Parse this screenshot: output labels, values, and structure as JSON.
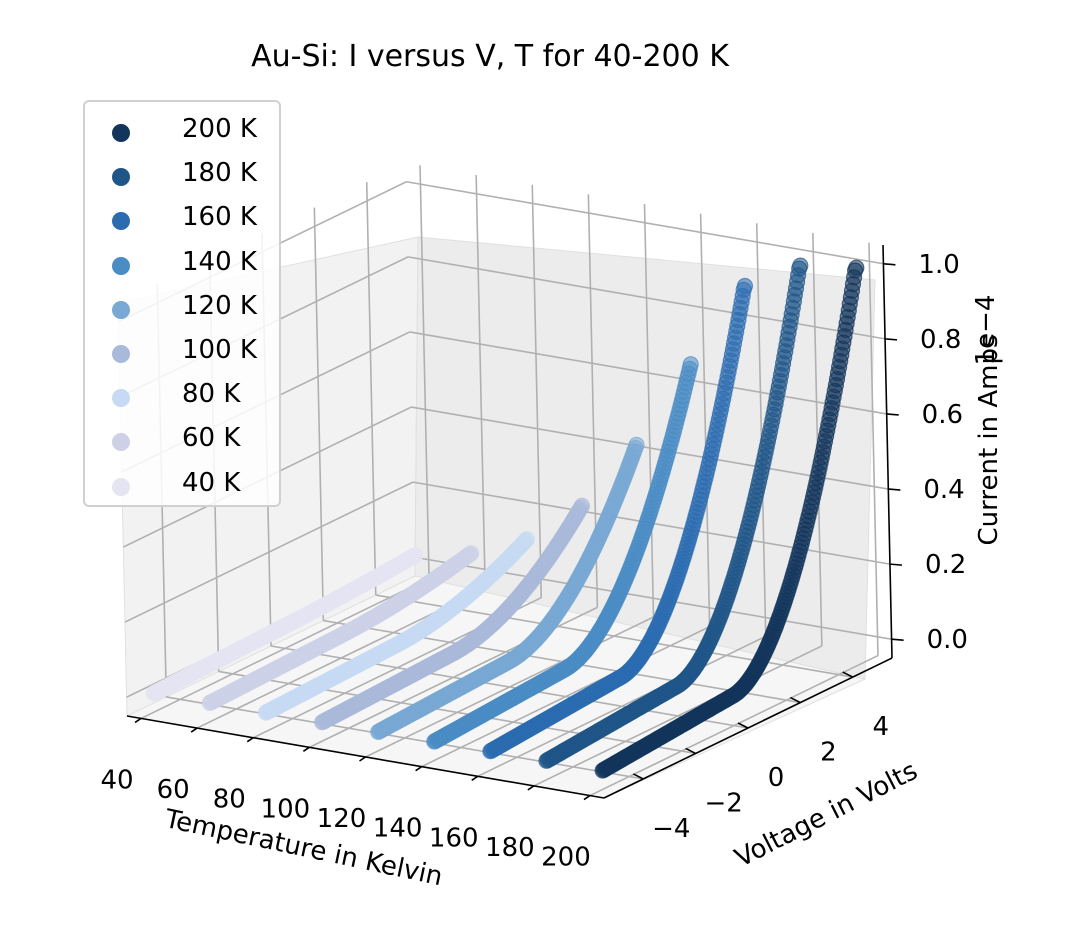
{
  "chart_data": {
    "type": "scatter",
    "projection": "3d",
    "title": "Au-Si: I versus V, T for 40-200 K",
    "xlabel": "Temperature in Kelvin",
    "ylabel": "Voltage in Volts",
    "zlabel": "Current in Amps",
    "z_offset_label": "1e−4",
    "xlim": [
      35,
      205
    ],
    "ylim": [
      -5.5,
      5.5
    ],
    "zlim": [
      -0.05,
      1.05
    ],
    "x_ticks": [
      "40",
      "60",
      "80",
      "100",
      "120",
      "140",
      "160",
      "180",
      "200"
    ],
    "y_ticks": [
      "−4",
      "−2",
      "0",
      "2",
      "4"
    ],
    "z_ticks": [
      "0.0",
      "0.2",
      "0.4",
      "0.6",
      "0.8",
      "1.0"
    ],
    "grid": true,
    "legend_position": "upper-left",
    "z_units_scale": "1e-4 A",
    "voltage_range": [
      -5,
      5
    ],
    "series": [
      {
        "name": "200 K",
        "temperature": 200,
        "color": "#12355b",
        "max_current": 1.0
      },
      {
        "name": "180 K",
        "temperature": 180,
        "color": "#1f5588",
        "max_current": 0.98
      },
      {
        "name": "160 K",
        "temperature": 160,
        "color": "#2b6cb0",
        "max_current": 0.9
      },
      {
        "name": "140 K",
        "temperature": 140,
        "color": "#4a8cc4",
        "max_current": 0.67
      },
      {
        "name": "120 K",
        "temperature": 120,
        "color": "#78a8d3",
        "max_current": 0.44
      },
      {
        "name": "100 K",
        "temperature": 100,
        "color": "#a9b9da",
        "max_current": 0.26
      },
      {
        "name": "80 K",
        "temperature": 80,
        "color": "#c6daf3",
        "max_current": 0.15
      },
      {
        "name": "60 K",
        "temperature": 60,
        "color": "#cdd1e8",
        "max_current": 0.09
      },
      {
        "name": "40 K",
        "temperature": 40,
        "color": "#e4e4f2",
        "max_current": 0.06
      }
    ]
  }
}
